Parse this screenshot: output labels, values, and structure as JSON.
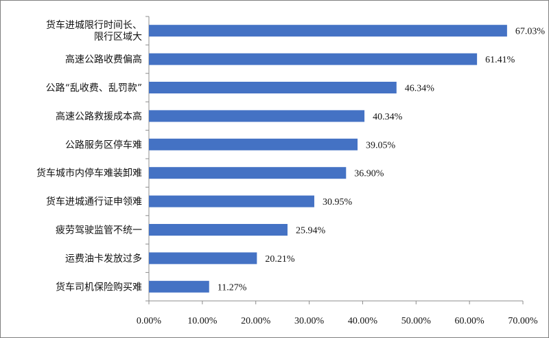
{
  "chart_data": {
    "type": "bar",
    "orientation": "horizontal",
    "categories": [
      [
        "货车进城限行时间长、",
        "限行区域大"
      ],
      [
        "高速公路收费偏高"
      ],
      [
        "公路“乱收费、乱罚款”"
      ],
      [
        "高速公路救援成本高"
      ],
      [
        "公路服务区停车难"
      ],
      [
        "货车城市内停车难装卸难"
      ],
      [
        "货车进城通行证申领难"
      ],
      [
        "疲劳驾驶监管不统一"
      ],
      [
        "运费油卡发放过多"
      ],
      [
        "货车司机保险购买难"
      ]
    ],
    "values": [
      67.03,
      61.41,
      46.34,
      40.34,
      39.05,
      36.9,
      30.95,
      25.94,
      20.21,
      11.27
    ],
    "value_labels": [
      "67.03%",
      "61.41%",
      "46.34%",
      "40.34%",
      "39.05%",
      "36.90%",
      "30.95%",
      "25.94%",
      "20.21%",
      "11.27%"
    ],
    "xticks": [
      "0.00%",
      "10.00%",
      "20.00%",
      "30.00%",
      "40.00%",
      "50.00%",
      "60.00%",
      "70.00%"
    ],
    "xlim": [
      0,
      70
    ],
    "bar_color": "#4472c4",
    "axis_color": "#8c8c8c",
    "grid": false,
    "title": "",
    "xlabel": "",
    "ylabel": ""
  }
}
